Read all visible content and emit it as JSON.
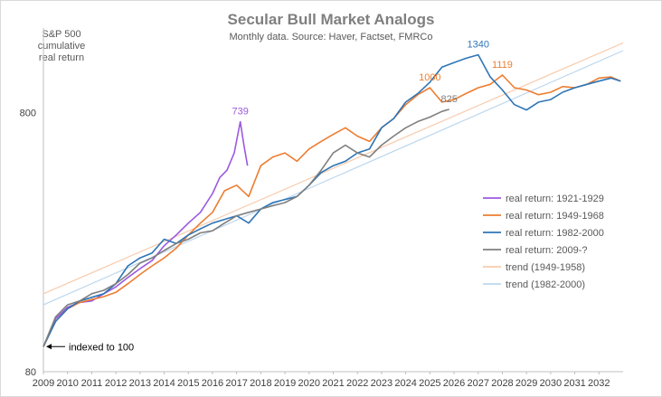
{
  "chart_data": {
    "type": "line",
    "title": "Secular Bull Market Analogs",
    "subtitle": "Monthly data.  Source: Haver, Factset, FMRCo",
    "ylabel_lines": [
      "S&P 500",
      "cumulative",
      "real return"
    ],
    "yscale": "log",
    "ylim": [
      80,
      1700
    ],
    "yticks": [
      80,
      800
    ],
    "xlim": [
      2009,
      2033
    ],
    "xticks": [
      "2009",
      "2010",
      "2011",
      "2012",
      "2013",
      "2014",
      "2015",
      "2016",
      "2017",
      "2018",
      "2019",
      "2020",
      "2021",
      "2022",
      "2023",
      "2024",
      "2025",
      "2026",
      "2027",
      "2028",
      "2029",
      "2030",
      "2031",
      "2032"
    ],
    "series": [
      {
        "name": "real return: 1921-1929",
        "color": "#9B59E0",
        "x": [
          2009,
          2009.5,
          2010,
          2010.5,
          2011,
          2011.5,
          2012,
          2012.5,
          2013,
          2013.5,
          2014,
          2014.5,
          2015,
          2015.5,
          2016,
          2016.3,
          2016.6,
          2016.9,
          2017.15,
          2017.3,
          2017.45
        ],
        "y": [
          100,
          128,
          142,
          148,
          150,
          160,
          170,
          185,
          200,
          215,
          245,
          270,
          300,
          330,
          390,
          450,
          480,
          560,
          739,
          600,
          500
        ]
      },
      {
        "name": "real return: 1949-1968",
        "color": "#ED7D31",
        "x": [
          2009,
          2009.5,
          2010,
          2010.5,
          2011,
          2011.5,
          2012,
          2012.5,
          2013,
          2013.5,
          2014,
          2014.5,
          2015,
          2015.5,
          2016,
          2016.5,
          2017,
          2017.5,
          2018,
          2018.5,
          2019,
          2019.5,
          2020,
          2020.5,
          2021,
          2021.5,
          2022,
          2022.5,
          2023,
          2023.5,
          2024,
          2024.5,
          2025,
          2025.5,
          2026,
          2026.5,
          2027,
          2027.5,
          2028,
          2028.5,
          2029,
          2029.5,
          2030,
          2030.5,
          2031,
          2031.5,
          2032,
          2032.5,
          2032.9
        ],
        "y": [
          100,
          125,
          140,
          148,
          152,
          156,
          162,
          175,
          190,
          205,
          220,
          240,
          270,
          300,
          330,
          400,
          420,
          380,
          500,
          540,
          560,
          520,
          580,
          620,
          660,
          700,
          650,
          620,
          700,
          760,
          860,
          940,
          1000,
          880,
          900,
          950,
          1000,
          1030,
          1119,
          1000,
          980,
          940,
          960,
          1010,
          1000,
          1030,
          1090,
          1100,
          1060
        ]
      },
      {
        "name": "real return: 1982-2000",
        "color": "#2E75B6",
        "x": [
          2009,
          2009.5,
          2010,
          2010.5,
          2011,
          2011.5,
          2012,
          2012.5,
          2013,
          2013.5,
          2014,
          2014.5,
          2015,
          2015.5,
          2016,
          2016.5,
          2017,
          2017.5,
          2018,
          2018.5,
          2019,
          2019.5,
          2020,
          2020.5,
          2021,
          2021.5,
          2022,
          2022.5,
          2023,
          2023.5,
          2024,
          2024.5,
          2025,
          2025.5,
          2026,
          2026.5,
          2027,
          2027.5,
          2028,
          2028.5,
          2029,
          2029.5,
          2030,
          2030.5,
          2031,
          2031.5,
          2032,
          2032.5,
          2032.9
        ],
        "y": [
          100,
          125,
          140,
          150,
          155,
          160,
          175,
          205,
          220,
          230,
          260,
          250,
          270,
          285,
          300,
          310,
          320,
          300,
          340,
          360,
          370,
          380,
          420,
          470,
          500,
          520,
          560,
          580,
          700,
          760,
          880,
          950,
          1050,
          1200,
          1250,
          1300,
          1340,
          1100,
          980,
          860,
          820,
          880,
          900,
          960,
          1000,
          1030,
          1060,
          1090,
          1060
        ]
      },
      {
        "name": "real return: 2009-?",
        "color": "#7F7F7F",
        "x": [
          2009,
          2009.5,
          2010,
          2010.5,
          2011,
          2011.5,
          2012,
          2012.5,
          2013,
          2013.5,
          2014,
          2014.5,
          2015,
          2015.5,
          2016,
          2016.5,
          2017,
          2017.5,
          2018,
          2018.5,
          2019,
          2019.5,
          2020,
          2020.5,
          2021,
          2021.5,
          2022,
          2022.5,
          2023,
          2023.5,
          2024,
          2024.5,
          2025,
          2025.5,
          2025.8
        ],
        "y": [
          100,
          130,
          145,
          150,
          160,
          165,
          175,
          190,
          210,
          220,
          235,
          250,
          260,
          275,
          280,
          300,
          320,
          330,
          340,
          350,
          360,
          380,
          420,
          480,
          560,
          600,
          560,
          540,
          600,
          650,
          700,
          740,
          770,
          810,
          825
        ]
      },
      {
        "name": "trend (1949-1958)",
        "color": "#F8CBAD",
        "x": [
          2009,
          2033
        ],
        "y": [
          160,
          1490
        ]
      },
      {
        "name": "trend (1982-2000)",
        "color": "#BDD7EE",
        "x": [
          2009,
          2033
        ],
        "y": [
          145,
          1390
        ]
      }
    ],
    "annotations": [
      {
        "text": "739",
        "x": 2017.15,
        "y": 739,
        "color": "#9B59E0"
      },
      {
        "text": "1340",
        "x": 2027,
        "y": 1340,
        "color": "#2E75B6"
      },
      {
        "text": "1119",
        "x": 2028,
        "y": 1119,
        "color": "#ED7D31"
      },
      {
        "text": "1000",
        "x": 2025,
        "y": 1000,
        "color": "#ED7D31"
      },
      {
        "text": "825",
        "x": 2025.8,
        "y": 825,
        "color": "#7F7F7F"
      }
    ],
    "arrow_note": {
      "text": "indexed to 100",
      "x": 2009,
      "y": 100
    },
    "legend_position": "right-middle"
  }
}
